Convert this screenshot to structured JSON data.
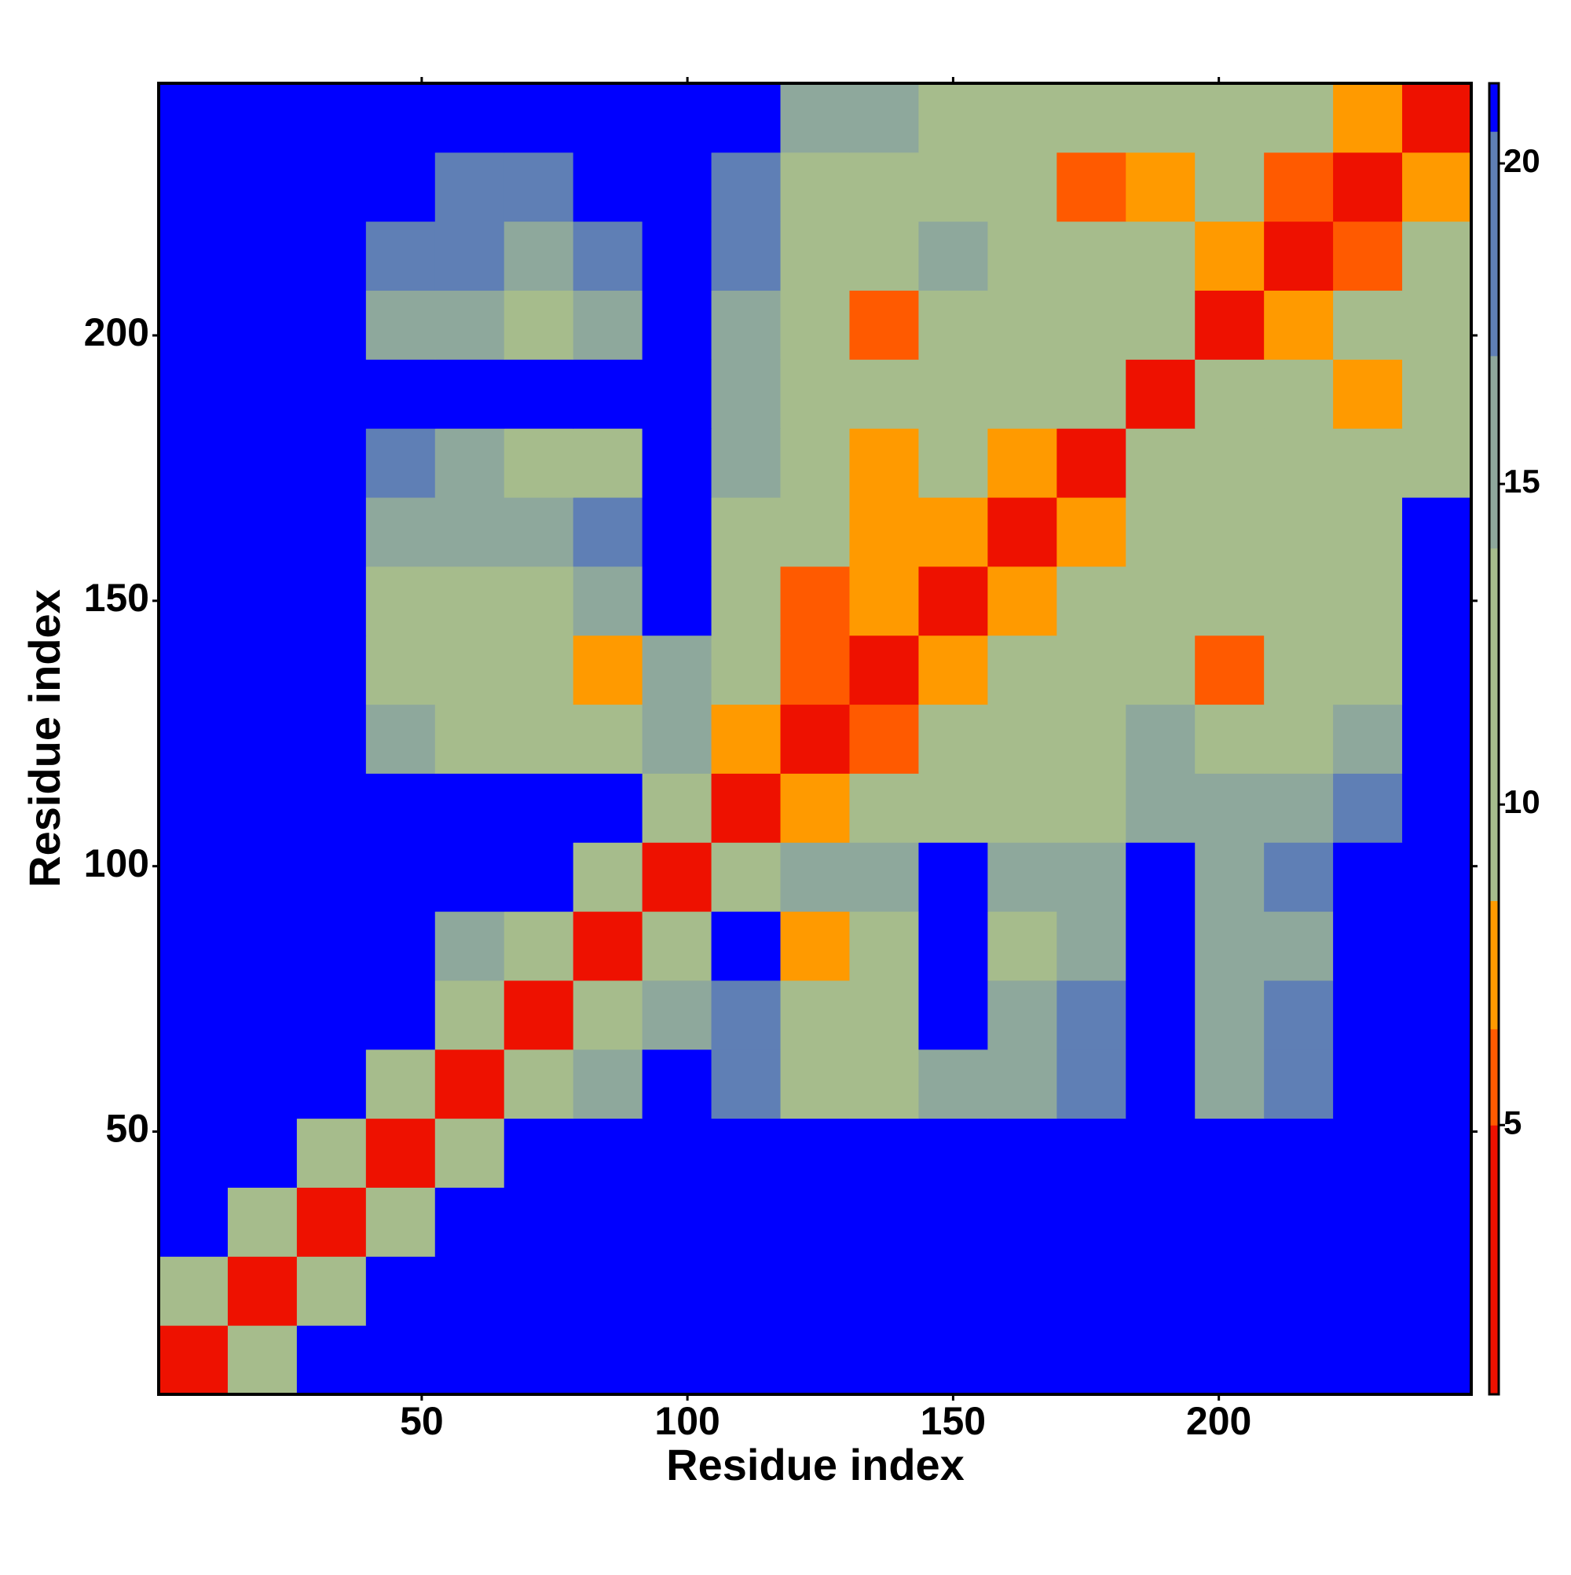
{
  "chart_data": {
    "type": "heatmap",
    "xlabel": "Residue index",
    "ylabel": "Residue index",
    "xlim": [
      0.5,
      247.5
    ],
    "ylim": [
      0.5,
      247.5
    ],
    "xticks": [
      50,
      100,
      150,
      200
    ],
    "yticks": [
      50,
      100,
      150,
      200
    ],
    "xbins": [
      0.5,
      13.5,
      26.5,
      39.5,
      52.5,
      65.5,
      78.5,
      91.5,
      104.5,
      117.5,
      130.5,
      143.5,
      156.5,
      169.5,
      182.5,
      195.5,
      208.5,
      221.5,
      234.5,
      247.5
    ],
    "ybins": [
      0.5,
      13.5,
      26.5,
      39.5,
      52.5,
      65.5,
      78.5,
      91.5,
      104.5,
      117.5,
      130.5,
      143.5,
      156.5,
      169.5,
      182.5,
      195.5,
      208.5,
      221.5,
      234.5,
      247.5
    ],
    "values": [
      [
        3,
        14,
        21,
        21,
        21,
        21,
        21,
        21,
        21,
        21,
        21,
        21,
        21,
        21,
        21,
        21,
        21,
        21,
        21
      ],
      [
        14,
        3,
        14,
        21,
        21,
        21,
        21,
        21,
        21,
        21,
        21,
        21,
        21,
        21,
        21,
        21,
        21,
        21,
        21
      ],
      [
        21,
        14,
        3,
        13,
        21,
        21,
        21,
        21,
        21,
        21,
        21,
        21,
        21,
        21,
        21,
        21,
        21,
        21,
        21
      ],
      [
        21,
        21,
        13,
        3,
        12,
        21,
        21,
        21,
        21,
        21,
        21,
        21,
        21,
        21,
        21,
        21,
        21,
        21,
        21
      ],
      [
        21,
        21,
        21,
        12,
        3,
        11,
        15,
        21,
        18,
        13,
        14,
        17,
        17,
        18,
        21,
        16,
        18,
        21,
        21
      ],
      [
        21,
        21,
        21,
        21,
        11,
        3,
        10,
        15,
        19,
        12,
        13,
        21,
        17,
        18,
        21,
        15,
        18,
        21,
        21
      ],
      [
        21,
        21,
        21,
        21,
        15,
        10,
        3,
        11,
        21,
        8,
        12,
        21,
        14,
        15,
        21,
        15,
        17,
        21,
        21
      ],
      [
        21,
        21,
        21,
        21,
        21,
        21,
        11,
        3,
        12,
        17,
        15,
        21,
        15,
        17,
        21,
        16,
        19,
        21,
        21
      ],
      [
        21,
        21,
        21,
        21,
        21,
        21,
        21,
        12,
        3,
        8,
        13,
        13,
        11,
        13,
        17,
        15,
        17,
        19,
        21
      ],
      [
        21,
        21,
        21,
        16,
        13,
        12,
        13,
        15,
        8,
        3,
        6,
        9,
        12,
        11,
        16,
        13,
        13,
        16,
        21
      ],
      [
        21,
        21,
        21,
        14,
        12,
        11,
        7,
        15,
        13,
        6,
        3,
        8,
        11,
        10,
        12,
        6,
        12,
        13,
        21
      ],
      [
        21,
        21,
        21,
        12,
        13,
        14,
        16,
        21,
        14,
        6,
        8,
        3,
        7,
        11,
        12,
        12,
        13,
        14,
        21
      ],
      [
        21,
        21,
        21,
        16,
        17,
        17,
        18,
        21,
        14,
        9,
        8,
        7,
        3,
        8,
        12,
        9,
        12,
        13,
        21
      ],
      [
        21,
        21,
        21,
        18,
        17,
        13,
        14,
        21,
        15,
        11,
        7,
        10,
        8,
        3,
        10,
        12,
        11,
        12,
        13
      ],
      [
        21,
        21,
        21,
        21,
        21,
        21,
        21,
        21,
        16,
        12,
        12,
        11,
        12,
        10,
        3,
        11,
        13,
        7,
        12
      ],
      [
        21,
        21,
        21,
        15,
        15,
        14,
        15,
        21,
        15,
        11,
        6,
        10,
        12,
        13,
        11,
        3,
        7,
        12,
        14
      ],
      [
        21,
        21,
        21,
        19,
        18,
        17,
        18,
        21,
        18,
        13,
        11,
        15,
        12,
        11,
        13,
        7,
        3,
        6,
        12
      ],
      [
        21,
        21,
        21,
        21,
        19,
        19,
        21,
        21,
        19,
        14,
        13,
        12,
        13,
        6,
        7,
        13,
        6,
        3,
        8
      ],
      [
        21,
        21,
        21,
        21,
        21,
        21,
        21,
        21,
        21,
        17,
        15,
        13,
        12,
        13,
        12,
        13,
        12,
        8,
        3
      ]
    ],
    "clim": [
      0.8,
      21.25
    ],
    "cticks": [
      5,
      10,
      15,
      20
    ],
    "colorscale": [
      {
        "value": 5,
        "color": "#ee1100"
      },
      {
        "value": 6.5,
        "color": "#ff5a00"
      },
      {
        "value": 8.5,
        "color": "#ff9a00"
      },
      {
        "value": 14,
        "color": "#a6bc8c"
      },
      {
        "value": 17,
        "color": "#8ea89c"
      },
      {
        "value": 20.5,
        "color": "#5f7fb5"
      },
      {
        "value": 21.25,
        "color": "#0000ff"
      }
    ]
  }
}
